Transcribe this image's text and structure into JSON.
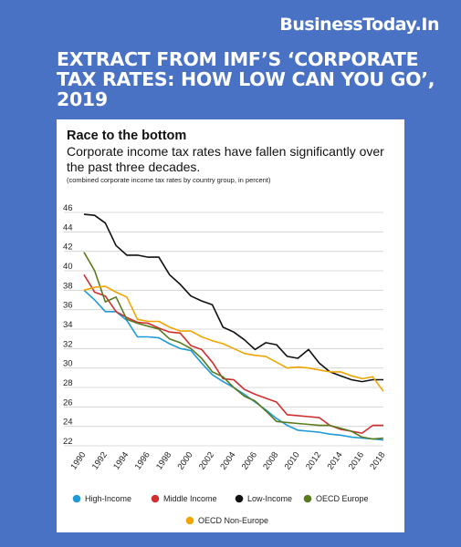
{
  "brand": "BusinessToday.In",
  "headline": "EXTRACT FROM IMF’S ‘CORPORATE TAX RATES: HOW LOW CAN YOU GO’, 2019",
  "chart_data": {
    "type": "line",
    "title": "Race to the bottom",
    "subtitle": "Corporate income tax rates have fallen significantly over the past three decades.",
    "note": "(combined corporate income tax rates by country group, in percent)",
    "xlabel": "",
    "ylabel": "",
    "x": [
      1990,
      1991,
      1992,
      1993,
      1994,
      1995,
      1996,
      1997,
      1998,
      1999,
      2000,
      2001,
      2002,
      2003,
      2004,
      2005,
      2006,
      2007,
      2008,
      2009,
      2010,
      2011,
      2012,
      2013,
      2014,
      2015,
      2016,
      2017,
      2018
    ],
    "x_ticks": [
      1990,
      1992,
      1994,
      1996,
      1998,
      2000,
      2002,
      2004,
      2006,
      2008,
      2010,
      2012,
      2014,
      2016,
      2018
    ],
    "ylim": [
      22,
      46
    ],
    "y_ticks": [
      22,
      24,
      26,
      28,
      30,
      32,
      34,
      36,
      38,
      40,
      42,
      44,
      46
    ],
    "grid": "horizontal",
    "legend_position": "bottom",
    "series": [
      {
        "name": "High-Income",
        "color": "#1e9ad6",
        "values": [
          38.0,
          37.0,
          35.8,
          35.8,
          34.9,
          33.2,
          33.2,
          33.1,
          32.5,
          32.0,
          31.8,
          30.5,
          29.3,
          28.6,
          28.0,
          27.3,
          26.5,
          25.7,
          24.8,
          24.1,
          23.6,
          23.5,
          23.4,
          23.2,
          23.1,
          22.9,
          22.8,
          22.7,
          22.6
        ]
      },
      {
        "name": "Middle Income",
        "color": "#d12f2f",
        "values": [
          39.6,
          37.8,
          37.4,
          35.8,
          35.2,
          34.7,
          34.6,
          34.1,
          33.7,
          33.6,
          32.3,
          31.9,
          30.6,
          28.9,
          28.8,
          27.8,
          27.3,
          26.9,
          26.5,
          25.2,
          25.1,
          25.0,
          24.9,
          24.1,
          23.7,
          23.5,
          23.3,
          24.1,
          24.1
        ]
      },
      {
        "name": "Low-Income",
        "color": "#111111",
        "values": [
          45.8,
          45.7,
          44.9,
          42.6,
          41.6,
          41.6,
          41.4,
          41.4,
          39.6,
          38.6,
          37.4,
          36.9,
          36.5,
          34.2,
          33.7,
          32.9,
          31.9,
          32.6,
          32.4,
          31.2,
          31.0,
          31.9,
          30.5,
          29.6,
          29.2,
          28.8,
          28.6,
          28.8,
          28.8
        ]
      },
      {
        "name": "OECD Europe",
        "color": "#5a7a1e",
        "values": [
          41.9,
          40.0,
          36.8,
          37.3,
          35.0,
          34.6,
          34.3,
          34.0,
          33.0,
          32.6,
          32.0,
          31.0,
          29.6,
          29.1,
          28.0,
          27.1,
          26.6,
          25.6,
          24.5,
          24.4,
          24.3,
          24.2,
          24.1,
          24.1,
          23.8,
          23.5,
          22.9,
          22.7,
          22.8
        ]
      },
      {
        "name": "OECD Non-Europe",
        "color": "#f0a500",
        "values": [
          38.0,
          38.3,
          38.4,
          37.8,
          37.3,
          35.0,
          34.8,
          34.8,
          34.2,
          33.8,
          33.8,
          33.2,
          32.8,
          32.5,
          32.0,
          31.5,
          31.3,
          31.2,
          30.6,
          30.0,
          30.1,
          30.0,
          29.8,
          29.6,
          29.6,
          29.2,
          28.9,
          29.1,
          27.6
        ]
      }
    ]
  }
}
